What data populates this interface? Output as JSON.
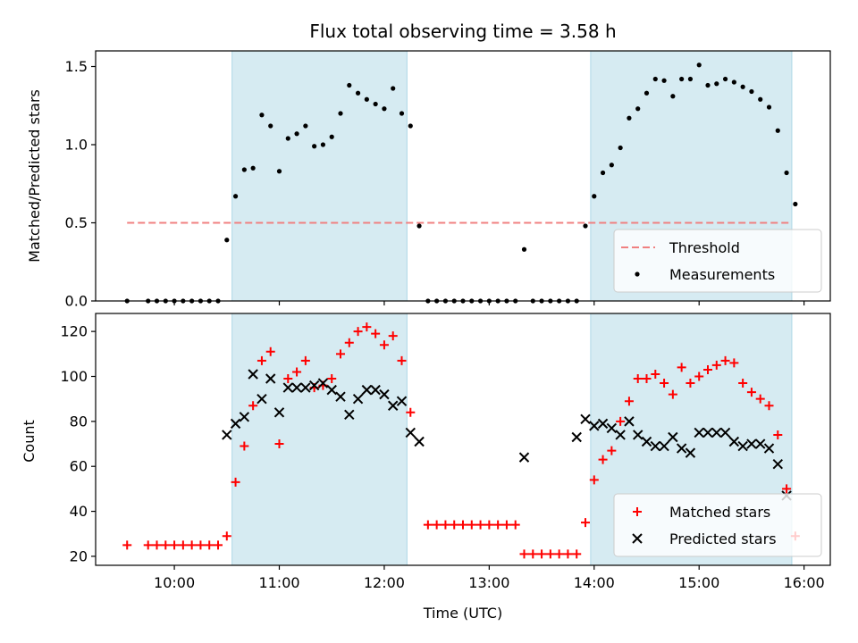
{
  "chart_data": [
    {
      "type": "scatter",
      "title": "Flux total observing time = 3.58 h",
      "xlabel": "",
      "ylabel": "Matched/Predicted stars",
      "ylim": [
        0,
        1.6
      ],
      "xlim": [
        "09:15",
        "16:15"
      ],
      "yticks": [
        "0.0",
        "0.5",
        "1.0",
        "1.5"
      ],
      "shaded_intervals": [
        [
          "10:33",
          "12:13"
        ],
        [
          "13:58",
          "15:53"
        ]
      ],
      "threshold": {
        "name": "Threshold",
        "value": 0.5,
        "x_range": [
          "09:33",
          "15:53"
        ],
        "color": "#f08080"
      },
      "legend_placement": "lower-right",
      "series": [
        {
          "name": "Measurements",
          "marker": "dot",
          "color": "#000000",
          "points": [
            [
              "09:33",
              0.0
            ],
            [
              "09:45",
              0.0
            ],
            [
              "09:50",
              0.0
            ],
            [
              "09:55",
              0.0
            ],
            [
              "10:00",
              0.0
            ],
            [
              "10:05",
              0.0
            ],
            [
              "10:10",
              0.0
            ],
            [
              "10:15",
              0.0
            ],
            [
              "10:20",
              0.0
            ],
            [
              "10:25",
              0.0
            ],
            [
              "10:30",
              0.39
            ],
            [
              "10:35",
              0.67
            ],
            [
              "10:40",
              0.84
            ],
            [
              "10:45",
              0.85
            ],
            [
              "10:50",
              1.19
            ],
            [
              "10:55",
              1.12
            ],
            [
              "11:00",
              0.83
            ],
            [
              "11:05",
              1.04
            ],
            [
              "11:10",
              1.07
            ],
            [
              "11:15",
              1.12
            ],
            [
              "11:20",
              0.99
            ],
            [
              "11:25",
              1.0
            ],
            [
              "11:30",
              1.05
            ],
            [
              "11:35",
              1.2
            ],
            [
              "11:40",
              1.38
            ],
            [
              "11:45",
              1.33
            ],
            [
              "11:50",
              1.29
            ],
            [
              "11:55",
              1.26
            ],
            [
              "12:00",
              1.23
            ],
            [
              "12:05",
              1.36
            ],
            [
              "12:10",
              1.2
            ],
            [
              "12:15",
              1.12
            ],
            [
              "12:20",
              0.48
            ],
            [
              "12:25",
              0.0
            ],
            [
              "12:30",
              0.0
            ],
            [
              "12:35",
              0.0
            ],
            [
              "12:40",
              0.0
            ],
            [
              "12:45",
              0.0
            ],
            [
              "12:50",
              0.0
            ],
            [
              "12:55",
              0.0
            ],
            [
              "13:00",
              0.0
            ],
            [
              "13:05",
              0.0
            ],
            [
              "13:10",
              0.0
            ],
            [
              "13:15",
              0.0
            ],
            [
              "13:20",
              0.33
            ],
            [
              "13:25",
              0.0
            ],
            [
              "13:30",
              0.0
            ],
            [
              "13:35",
              0.0
            ],
            [
              "13:40",
              0.0
            ],
            [
              "13:45",
              0.0
            ],
            [
              "13:50",
              0.0
            ],
            [
              "13:55",
              0.48
            ],
            [
              "14:00",
              0.67
            ],
            [
              "14:05",
              0.82
            ],
            [
              "14:10",
              0.87
            ],
            [
              "14:15",
              0.98
            ],
            [
              "14:20",
              1.17
            ],
            [
              "14:25",
              1.23
            ],
            [
              "14:30",
              1.33
            ],
            [
              "14:35",
              1.42
            ],
            [
              "14:40",
              1.41
            ],
            [
              "14:45",
              1.31
            ],
            [
              "14:50",
              1.42
            ],
            [
              "14:55",
              1.42
            ],
            [
              "15:00",
              1.51
            ],
            [
              "15:05",
              1.38
            ],
            [
              "15:10",
              1.39
            ],
            [
              "15:15",
              1.42
            ],
            [
              "15:20",
              1.4
            ],
            [
              "15:25",
              1.37
            ],
            [
              "15:30",
              1.34
            ],
            [
              "15:35",
              1.29
            ],
            [
              "15:40",
              1.24
            ],
            [
              "15:45",
              1.09
            ],
            [
              "15:50",
              0.82
            ],
            [
              "15:55",
              0.62
            ]
          ]
        }
      ]
    },
    {
      "type": "scatter",
      "title": "",
      "xlabel": "Time (UTC)",
      "ylabel": "Count",
      "ylim": [
        16,
        128
      ],
      "xlim": [
        "09:15",
        "16:15"
      ],
      "xticks": [
        "10:00",
        "11:00",
        "12:00",
        "13:00",
        "14:00",
        "15:00",
        "16:00"
      ],
      "yticks": [
        "20",
        "40",
        "60",
        "80",
        "100",
        "120"
      ],
      "shaded_intervals": [
        [
          "10:33",
          "12:13"
        ],
        [
          "13:58",
          "15:53"
        ]
      ],
      "legend_placement": "lower-right",
      "series": [
        {
          "name": "Matched stars",
          "marker": "plus",
          "color": "#ff0000",
          "points": [
            [
              "09:33",
              25
            ],
            [
              "09:45",
              25
            ],
            [
              "09:50",
              25
            ],
            [
              "09:55",
              25
            ],
            [
              "10:00",
              25
            ],
            [
              "10:05",
              25
            ],
            [
              "10:10",
              25
            ],
            [
              "10:15",
              25
            ],
            [
              "10:20",
              25
            ],
            [
              "10:25",
              25
            ],
            [
              "10:30",
              29
            ],
            [
              "10:35",
              53
            ],
            [
              "10:40",
              69
            ],
            [
              "10:45",
              87
            ],
            [
              "10:50",
              107
            ],
            [
              "10:55",
              111
            ],
            [
              "11:00",
              70
            ],
            [
              "11:05",
              99
            ],
            [
              "11:10",
              102
            ],
            [
              "11:15",
              107
            ],
            [
              "11:20",
              95
            ],
            [
              "11:25",
              96
            ],
            [
              "11:30",
              99
            ],
            [
              "11:35",
              110
            ],
            [
              "11:40",
              115
            ],
            [
              "11:45",
              120
            ],
            [
              "11:50",
              122
            ],
            [
              "11:55",
              119
            ],
            [
              "12:00",
              114
            ],
            [
              "12:05",
              118
            ],
            [
              "12:10",
              107
            ],
            [
              "12:15",
              84
            ],
            [
              "12:25",
              34
            ],
            [
              "12:30",
              34
            ],
            [
              "12:35",
              34
            ],
            [
              "12:40",
              34
            ],
            [
              "12:45",
              34
            ],
            [
              "12:50",
              34
            ],
            [
              "12:55",
              34
            ],
            [
              "13:00",
              34
            ],
            [
              "13:05",
              34
            ],
            [
              "13:10",
              34
            ],
            [
              "13:15",
              34
            ],
            [
              "13:20",
              21
            ],
            [
              "13:25",
              21
            ],
            [
              "13:30",
              21
            ],
            [
              "13:35",
              21
            ],
            [
              "13:40",
              21
            ],
            [
              "13:45",
              21
            ],
            [
              "13:50",
              21
            ],
            [
              "13:55",
              35
            ],
            [
              "14:00",
              54
            ],
            [
              "14:05",
              63
            ],
            [
              "14:10",
              67
            ],
            [
              "14:15",
              80
            ],
            [
              "14:20",
              89
            ],
            [
              "14:25",
              99
            ],
            [
              "14:30",
              99
            ],
            [
              "14:35",
              101
            ],
            [
              "14:40",
              97
            ],
            [
              "14:45",
              92
            ],
            [
              "14:50",
              104
            ],
            [
              "14:55",
              97
            ],
            [
              "15:00",
              100
            ],
            [
              "15:05",
              103
            ],
            [
              "15:10",
              105
            ],
            [
              "15:15",
              107
            ],
            [
              "15:20",
              106
            ],
            [
              "15:25",
              97
            ],
            [
              "15:30",
              93
            ],
            [
              "15:35",
              90
            ],
            [
              "15:40",
              87
            ],
            [
              "15:45",
              74
            ],
            [
              "15:50",
              50
            ],
            [
              "15:55",
              29
            ]
          ]
        },
        {
          "name": "Predicted stars",
          "marker": "x",
          "color": "#000000",
          "points": [
            [
              "10:30",
              74
            ],
            [
              "10:35",
              79
            ],
            [
              "10:40",
              82
            ],
            [
              "10:45",
              101
            ],
            [
              "10:50",
              90
            ],
            [
              "10:55",
              99
            ],
            [
              "11:00",
              84
            ],
            [
              "11:05",
              95
            ],
            [
              "11:10",
              95
            ],
            [
              "11:15",
              95
            ],
            [
              "11:20",
              96
            ],
            [
              "11:25",
              97
            ],
            [
              "11:30",
              94
            ],
            [
              "11:35",
              91
            ],
            [
              "11:40",
              83
            ],
            [
              "11:45",
              90
            ],
            [
              "11:50",
              94
            ],
            [
              "11:55",
              94
            ],
            [
              "12:00",
              92
            ],
            [
              "12:05",
              87
            ],
            [
              "12:10",
              89
            ],
            [
              "12:15",
              75
            ],
            [
              "12:20",
              71
            ],
            [
              "13:20",
              64
            ],
            [
              "13:50",
              73
            ],
            [
              "13:55",
              81
            ],
            [
              "14:00",
              78
            ],
            [
              "14:05",
              79
            ],
            [
              "14:10",
              77
            ],
            [
              "14:15",
              74
            ],
            [
              "14:20",
              80
            ],
            [
              "14:25",
              74
            ],
            [
              "14:30",
              71
            ],
            [
              "14:35",
              69
            ],
            [
              "14:40",
              69
            ],
            [
              "14:45",
              73
            ],
            [
              "14:50",
              68
            ],
            [
              "14:55",
              66
            ],
            [
              "15:00",
              75
            ],
            [
              "15:05",
              75
            ],
            [
              "15:10",
              75
            ],
            [
              "15:15",
              75
            ],
            [
              "15:20",
              71
            ],
            [
              "15:25",
              69
            ],
            [
              "15:30",
              70
            ],
            [
              "15:35",
              70
            ],
            [
              "15:40",
              68
            ],
            [
              "15:45",
              61
            ],
            [
              "15:50",
              47
            ]
          ]
        }
      ]
    }
  ]
}
